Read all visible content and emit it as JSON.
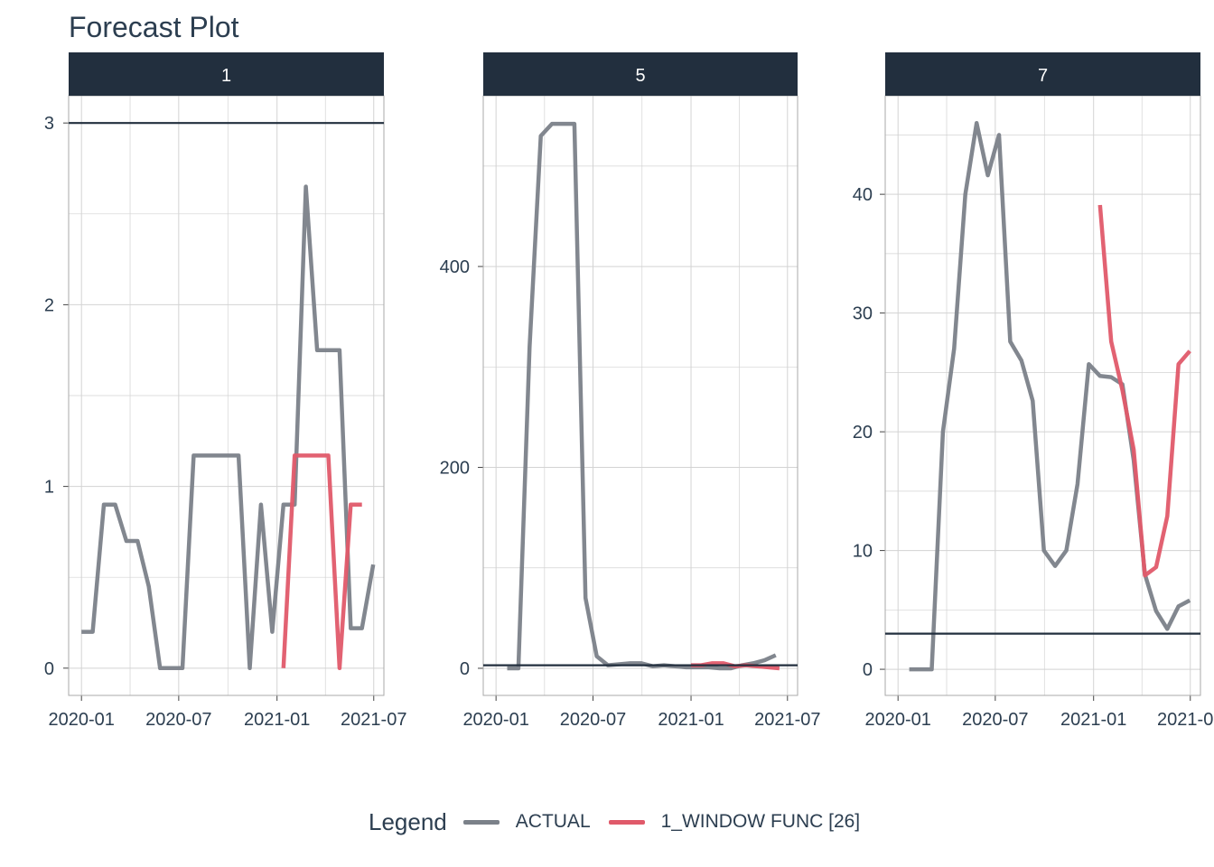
{
  "title": "Forecast Plot",
  "legend": {
    "title": "Legend",
    "items": [
      {
        "label": "ACTUAL",
        "color": "#7b8189"
      },
      {
        "label": "1_WINDOW FUNC [26]",
        "color": "#e05a6a"
      }
    ]
  },
  "colors": {
    "strip": "#222f3e",
    "strip_text": "#ffffff",
    "grid": "#d3d3d3",
    "hline": "#222f3e",
    "axis_text": "#2c3e50"
  },
  "chart_data": [
    {
      "type": "line",
      "facet": "1",
      "x_ticks": [
        "2020-01",
        "2020-07",
        "2021-01",
        "2021-07"
      ],
      "xlim": [
        "2019-12-08",
        "2021-07-20"
      ],
      "y_ticks": [
        0,
        1,
        2,
        3
      ],
      "ylim": [
        -0.15,
        3.15
      ],
      "threshold": 3,
      "series": [
        {
          "name": "ACTUAL",
          "x": [
            "2020-01-01",
            "2020-01-22",
            "2020-02-12",
            "2020-03-04",
            "2020-03-25",
            "2020-04-15",
            "2020-05-06",
            "2020-05-27",
            "2020-06-17",
            "2020-07-08",
            "2020-07-29",
            "2020-08-19",
            "2020-09-09",
            "2020-09-30",
            "2020-10-21",
            "2020-11-11",
            "2020-12-02",
            "2020-12-23",
            "2021-01-13",
            "2021-02-03",
            "2021-02-24",
            "2021-03-17",
            "2021-04-07",
            "2021-04-28",
            "2021-05-19",
            "2021-06-09",
            "2021-06-30"
          ],
          "y": [
            0.2,
            0.2,
            0.9,
            0.9,
            0.7,
            0.7,
            0.45,
            0,
            0,
            0,
            1.17,
            1.17,
            1.17,
            1.17,
            1.17,
            0,
            0.9,
            0.2,
            0.9,
            0.9,
            2.65,
            1.75,
            1.75,
            1.75,
            0.22,
            0.22,
            0.57
          ]
        },
        {
          "name": "1_WINDOW FUNC [26]",
          "x": [
            "2021-01-13",
            "2021-02-03",
            "2021-02-24",
            "2021-03-17",
            "2021-04-07",
            "2021-04-28",
            "2021-05-19",
            "2021-06-09"
          ],
          "y": [
            0,
            1.17,
            1.17,
            1.17,
            1.17,
            0,
            0.9,
            0.9
          ]
        }
      ]
    },
    {
      "type": "line",
      "facet": "5",
      "x_ticks": [
        "2020-01",
        "2020-07",
        "2021-01",
        "2021-07"
      ],
      "xlim": [
        "2019-12-08",
        "2021-07-20"
      ],
      "y_ticks": [
        0,
        200,
        400
      ],
      "ylim": [
        -27,
        570
      ],
      "threshold": 3,
      "series": [
        {
          "name": "ACTUAL",
          "x": [
            "2020-01-22",
            "2020-02-12",
            "2020-03-04",
            "2020-03-25",
            "2020-04-15",
            "2020-05-06",
            "2020-05-27",
            "2020-06-17",
            "2020-07-08",
            "2020-07-29",
            "2020-08-19",
            "2020-09-09",
            "2020-09-30",
            "2020-10-21",
            "2020-11-11",
            "2020-12-02",
            "2020-12-23",
            "2021-01-13",
            "2021-02-03",
            "2021-02-24",
            "2021-03-17",
            "2021-04-07",
            "2021-04-28",
            "2021-05-19",
            "2021-06-09"
          ],
          "y": [
            0,
            0,
            320,
            530,
            542,
            542,
            542,
            70,
            12,
            3,
            4,
            5,
            5,
            2,
            3,
            2,
            1,
            1,
            1,
            0,
            0,
            3,
            5,
            8,
            13
          ]
        },
        {
          "name": "1_WINDOW FUNC [26]",
          "x": [
            "2021-01-01",
            "2021-01-20",
            "2021-02-10",
            "2021-03-03",
            "2021-03-24",
            "2021-04-14",
            "2021-05-05",
            "2021-05-26",
            "2021-06-16"
          ],
          "y": [
            3,
            3,
            5,
            5,
            2,
            3,
            2,
            1,
            0
          ]
        }
      ]
    },
    {
      "type": "line",
      "facet": "7",
      "x_ticks": [
        "2020-01",
        "2020-07",
        "2021-01",
        "2021-07"
      ],
      "xlim": [
        "2019-12-08",
        "2021-07-20"
      ],
      "y_ticks": [
        0,
        10,
        20,
        30,
        40
      ],
      "ylim": [
        -2.2,
        48.3
      ],
      "threshold": 3,
      "series": [
        {
          "name": "ACTUAL",
          "x": [
            "2020-01-22",
            "2020-02-12",
            "2020-03-04",
            "2020-03-25",
            "2020-04-15",
            "2020-05-06",
            "2020-05-27",
            "2020-06-17",
            "2020-07-08",
            "2020-07-29",
            "2020-08-19",
            "2020-09-09",
            "2020-09-30",
            "2020-10-21",
            "2020-11-11",
            "2020-12-02",
            "2020-12-23",
            "2021-01-13",
            "2021-02-03",
            "2021-02-24",
            "2021-03-17",
            "2021-04-07",
            "2021-04-28",
            "2021-05-19",
            "2021-06-09",
            "2021-06-30",
            "2021-07-21"
          ],
          "y": [
            0,
            0,
            0,
            20,
            27,
            40,
            46,
            41.6,
            45,
            27.6,
            26,
            22.6,
            10,
            8.7,
            10,
            15.6,
            25.7,
            24.7,
            24.6,
            24,
            17.6,
            8,
            4.9,
            3.4,
            5.3,
            5.8,
            null
          ]
        },
        {
          "name": "1_WINDOW FUNC [26]",
          "x": [
            "2021-01-13",
            "2021-02-03",
            "2021-02-24",
            "2021-03-17",
            "2021-04-07",
            "2021-04-28",
            "2021-05-19",
            "2021-06-09",
            "2021-06-30"
          ],
          "y": [
            39.1,
            27.6,
            23.5,
            18.5,
            7.9,
            8.6,
            12.9,
            25.7,
            26.8
          ]
        }
      ]
    }
  ]
}
